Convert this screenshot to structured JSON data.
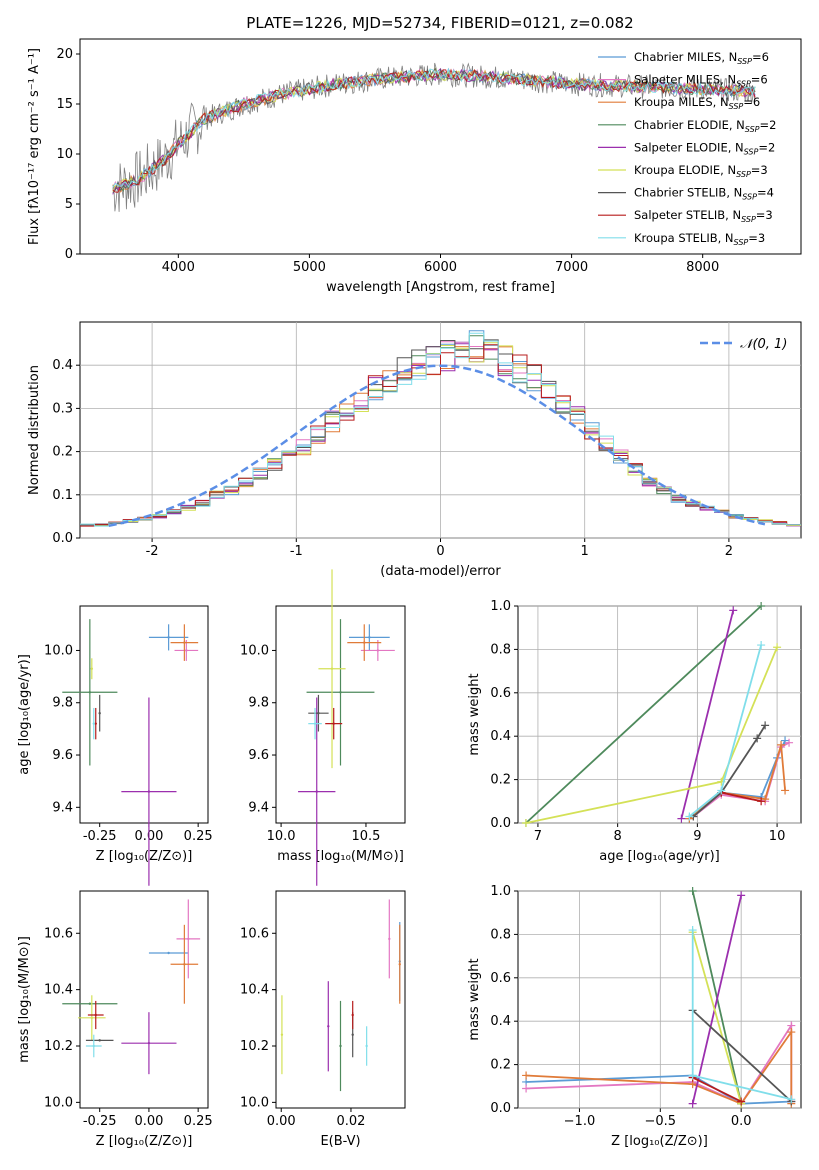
{
  "title": "PLATE=1226, MJD=52734, FIBERID=0121, z=0.082",
  "colors": {
    "Chabrier MILES": "#5b9bd5",
    "Salpeter MILES": "#e377c2",
    "Kroupa MILES": "#e07b39",
    "Chabrier ELODIE": "#4e8a5c",
    "Salpeter ELODIE": "#9b2fae",
    "Kroupa ELODIE": "#d4e157",
    "Chabrier STELIB": "#555555",
    "Salpeter STELIB": "#b71c1c",
    "Kroupa STELIB": "#80deea",
    "data": "#808080",
    "normal": "#5b8ee6"
  },
  "chart_data": [
    {
      "type": "line",
      "title": "PLATE=1226, MJD=52734, FIBERID=0121, z=0.082",
      "xlabel": "wavelength [Angstrom, rest frame]",
      "ylabel": "Flux [fλ10⁻¹⁷ erg cm⁻² s⁻¹ A⁻¹]",
      "xlim": [
        3250,
        8750
      ],
      "ylim": [
        0,
        21.5
      ],
      "xticks": [
        4000,
        5000,
        6000,
        7000,
        8000
      ],
      "yticks": [
        0,
        5,
        10,
        15,
        20
      ],
      "grid": false,
      "legend": "top-right",
      "continuum_points": [
        [
          3500,
          6.5
        ],
        [
          3700,
          7.5
        ],
        [
          3900,
          9.5
        ],
        [
          4000,
          11.0
        ],
        [
          4200,
          13.5
        ],
        [
          4500,
          15.0
        ],
        [
          4800,
          16.0
        ],
        [
          5200,
          17.0
        ],
        [
          5600,
          17.6
        ],
        [
          6000,
          18.0
        ],
        [
          6500,
          17.6
        ],
        [
          7000,
          17.0
        ],
        [
          7400,
          16.8
        ],
        [
          8000,
          16.5
        ],
        [
          8400,
          16.2
        ]
      ],
      "series": [
        {
          "name": "Chabrier MILES, N_SSP=6",
          "legend": "Chabrier MILES, N",
          "sub": "SSP",
          "eq": "=6"
        },
        {
          "name": "Salpeter MILES, N_SSP=6",
          "legend": "Salpeter MILES, N",
          "sub": "SSP",
          "eq": "=6"
        },
        {
          "name": "Kroupa MILES, N_SSP=6",
          "legend": "Kroupa MILES, N",
          "sub": "SSP",
          "eq": "=6"
        },
        {
          "name": "Chabrier ELODIE, N_SSP=2",
          "legend": "Chabrier ELODIE, N",
          "sub": "SSP",
          "eq": "=2"
        },
        {
          "name": "Salpeter ELODIE, N_SSP=2",
          "legend": "Salpeter ELODIE, N",
          "sub": "SSP",
          "eq": "=2"
        },
        {
          "name": "Kroupa ELODIE, N_SSP=3",
          "legend": "Kroupa ELODIE, N",
          "sub": "SSP",
          "eq": "=3"
        },
        {
          "name": "Chabrier STELIB, N_SSP=4",
          "legend": "Chabrier STELIB, N",
          "sub": "SSP",
          "eq": "=4"
        },
        {
          "name": "Salpeter STELIB, N_SSP=3",
          "legend": "Salpeter STELIB, N",
          "sub": "SSP",
          "eq": "=3"
        },
        {
          "name": "Kroupa STELIB, N_SSP=3",
          "legend": "Kroupa STELIB, N",
          "sub": "SSP",
          "eq": "=3"
        }
      ]
    },
    {
      "type": "bar",
      "xlabel": "(data-model)/error",
      "ylabel": "Normed distribution",
      "xlim": [
        -2.5,
        2.5
      ],
      "ylim": [
        0,
        0.5
      ],
      "xticks": [
        -2,
        -1,
        0,
        1,
        2
      ],
      "yticks": [
        0.0,
        0.1,
        0.2,
        0.3,
        0.4
      ],
      "grid": true,
      "legend": "top-right",
      "legend_label": "𝒩(0, 1)",
      "bin_width": 0.1,
      "histogram_centers_start": -2.45,
      "histogram_values": [
        0.03,
        0.03,
        0.035,
        0.04,
        0.045,
        0.05,
        0.06,
        0.07,
        0.08,
        0.1,
        0.11,
        0.13,
        0.15,
        0.17,
        0.19,
        0.21,
        0.24,
        0.27,
        0.29,
        0.32,
        0.35,
        0.37,
        0.39,
        0.4,
        0.41,
        0.42,
        0.43,
        0.44,
        0.43,
        0.41,
        0.39,
        0.37,
        0.34,
        0.31,
        0.28,
        0.25,
        0.22,
        0.19,
        0.16,
        0.13,
        0.11,
        0.09,
        0.08,
        0.07,
        0.06,
        0.05,
        0.045,
        0.04,
        0.035,
        0.03
      ]
    },
    {
      "type": "scatter",
      "xlabel": "Z [log₁₀(Z/Z⊙)]",
      "ylabel": "age  [log₁₀(age/yr)]",
      "xlim": [
        -0.35,
        0.3
      ],
      "ylim": [
        9.34,
        10.17
      ],
      "xticks": [
        -0.25,
        0.0,
        0.25
      ],
      "yticks": [
        9.4,
        9.6,
        9.8,
        10.0
      ],
      "grid": false,
      "points": [
        {
          "series": "Chabrier MILES",
          "x": 0.1,
          "y": 10.05,
          "xerr": 0.1,
          "yerr": 0.05
        },
        {
          "series": "Salpeter MILES",
          "x": 0.19,
          "y": 10.0,
          "xerr": 0.06,
          "yerr": 0.04
        },
        {
          "series": "Kroupa MILES",
          "x": 0.18,
          "y": 10.03,
          "xerr": 0.07,
          "yerr": 0.07
        },
        {
          "series": "Chabrier ELODIE",
          "x": -0.3,
          "y": 9.84,
          "xerr": 0.14,
          "yerr": 0.28
        },
        {
          "series": "Salpeter ELODIE",
          "x": 0.0,
          "y": 9.46,
          "xerr": 0.14,
          "yerr": 0.36
        },
        {
          "series": "Kroupa ELODIE",
          "x": -0.29,
          "y": 9.93,
          "xerr": 0.0,
          "yerr": 0.04
        },
        {
          "series": "Chabrier STELIB",
          "x": -0.25,
          "y": 9.76,
          "xerr": 0.0,
          "yerr": 0.07
        },
        {
          "series": "Salpeter STELIB",
          "x": -0.27,
          "y": 9.72,
          "xerr": 0.0,
          "yerr": 0.06
        },
        {
          "series": "Kroupa STELIB",
          "x": -0.28,
          "y": 9.72,
          "xerr": 0.0,
          "yerr": 0.06
        }
      ]
    },
    {
      "type": "scatter",
      "xlabel": "mass [log₁₀(M/M⊙)]",
      "xlim": [
        9.97,
        10.73
      ],
      "ylim": [
        9.34,
        10.17
      ],
      "xticks": [
        10.0,
        10.5
      ],
      "yticks": [
        9.4,
        9.6,
        9.8,
        10.0
      ],
      "grid": false,
      "points": [
        {
          "series": "Chabrier MILES",
          "x": 10.52,
          "y": 10.05,
          "xerr": 0.12,
          "yerr": 0.05
        },
        {
          "series": "Salpeter MILES",
          "x": 10.57,
          "y": 10.0,
          "xerr": 0.1,
          "yerr": 0.04
        },
        {
          "series": "Kroupa MILES",
          "x": 10.49,
          "y": 10.03,
          "xerr": 0.1,
          "yerr": 0.07
        },
        {
          "series": "Chabrier ELODIE",
          "x": 10.35,
          "y": 9.84,
          "xerr": 0.2,
          "yerr": 0.28
        },
        {
          "series": "Salpeter ELODIE",
          "x": 10.21,
          "y": 9.46,
          "xerr": 0.11,
          "yerr": 0.36
        },
        {
          "series": "Kroupa ELODIE",
          "x": 10.3,
          "y": 9.93,
          "xerr": 0.08,
          "yerr": 0.38
        },
        {
          "series": "Chabrier STELIB",
          "x": 10.22,
          "y": 9.76,
          "xerr": 0.06,
          "yerr": 0.07
        },
        {
          "series": "Salpeter STELIB",
          "x": 10.31,
          "y": 9.72,
          "xerr": 0.05,
          "yerr": 0.06
        },
        {
          "series": "Kroupa STELIB",
          "x": 10.2,
          "y": 9.72,
          "xerr": 0.04,
          "yerr": 0.06
        }
      ]
    },
    {
      "type": "line",
      "xlabel": "age  [log₁₀(age/yr)]",
      "ylabel": "mass weight",
      "xlim": [
        6.75,
        10.3
      ],
      "ylim": [
        0,
        1.0
      ],
      "xticks": [
        7,
        8,
        9,
        10
      ],
      "yticks": [
        0.0,
        0.2,
        0.4,
        0.6,
        0.8,
        1.0
      ],
      "grid": true,
      "series": [
        {
          "name": "Chabrier MILES",
          "points": [
            [
              8.9,
              0.02
            ],
            [
              9.3,
              0.14
            ],
            [
              9.8,
              0.12
            ],
            [
              10.0,
              0.3
            ],
            [
              10.1,
              0.38
            ]
          ]
        },
        {
          "name": "Salpeter MILES",
          "points": [
            [
              8.95,
              0.03
            ],
            [
              9.3,
              0.13
            ],
            [
              9.85,
              0.1
            ],
            [
              10.05,
              0.35
            ],
            [
              10.15,
              0.37
            ]
          ]
        },
        {
          "name": "Kroupa MILES",
          "points": [
            [
              8.9,
              0.02
            ],
            [
              9.3,
              0.14
            ],
            [
              9.85,
              0.11
            ],
            [
              10.05,
              0.36
            ],
            [
              10.1,
              0.15
            ]
          ]
        },
        {
          "name": "Chabrier ELODIE",
          "points": [
            [
              6.85,
              0.0
            ],
            [
              9.8,
              1.0
            ]
          ]
        },
        {
          "name": "Salpeter ELODIE",
          "points": [
            [
              8.8,
              0.02
            ],
            [
              9.45,
              0.98
            ]
          ]
        },
        {
          "name": "Kroupa ELODIE",
          "points": [
            [
              6.85,
              0.0
            ],
            [
              9.3,
              0.19
            ],
            [
              10.0,
              0.81
            ]
          ]
        },
        {
          "name": "Chabrier STELIB",
          "points": [
            [
              8.95,
              0.03
            ],
            [
              9.3,
              0.14
            ],
            [
              9.75,
              0.39
            ],
            [
              9.85,
              0.45
            ]
          ]
        },
        {
          "name": "Salpeter STELIB",
          "points": [
            [
              9.3,
              0.14
            ],
            [
              9.8,
              0.1
            ]
          ]
        },
        {
          "name": "Kroupa STELIB",
          "points": [
            [
              8.9,
              0.03
            ],
            [
              9.3,
              0.15
            ],
            [
              9.8,
              0.82
            ]
          ]
        }
      ]
    },
    {
      "type": "scatter",
      "xlabel": "Z [log₁₀(Z/Z⊙)]",
      "ylabel": "mass [log₁₀(M/M⊙)]",
      "xlim": [
        -0.35,
        0.3
      ],
      "ylim": [
        9.98,
        10.75
      ],
      "xticks": [
        -0.25,
        0.0,
        0.25
      ],
      "yticks": [
        10.0,
        10.2,
        10.4,
        10.6
      ],
      "grid": false,
      "points": [
        {
          "series": "Chabrier MILES",
          "x": 0.1,
          "y": 10.53,
          "xerr": 0.1,
          "yerr": 0.0
        },
        {
          "series": "Salpeter MILES",
          "x": 0.2,
          "y": 10.58,
          "xerr": 0.06,
          "yerr": 0.14
        },
        {
          "series": "Kroupa MILES",
          "x": 0.18,
          "y": 10.49,
          "xerr": 0.07,
          "yerr": 0.14
        },
        {
          "series": "Chabrier ELODIE",
          "x": -0.3,
          "y": 10.35,
          "xerr": 0.14,
          "yerr": 0.0
        },
        {
          "series": "Salpeter ELODIE",
          "x": 0.0,
          "y": 10.21,
          "xerr": 0.14,
          "yerr": 0.11
        },
        {
          "series": "Kroupa ELODIE",
          "x": -0.29,
          "y": 10.3,
          "xerr": 0.07,
          "yerr": 0.08
        },
        {
          "series": "Chabrier STELIB",
          "x": -0.25,
          "y": 10.22,
          "xerr": 0.07,
          "yerr": 0.0
        },
        {
          "series": "Salpeter STELIB",
          "x": -0.27,
          "y": 10.31,
          "xerr": 0.04,
          "yerr": 0.05
        },
        {
          "series": "Kroupa STELIB",
          "x": -0.28,
          "y": 10.2,
          "xerr": 0.04,
          "yerr": 0.04
        }
      ]
    },
    {
      "type": "scatter",
      "xlabel": "E(B-V)",
      "xlim": [
        -0.0015,
        0.0355
      ],
      "ylim": [
        9.98,
        10.75
      ],
      "xticks": [
        0.0,
        0.02
      ],
      "yticks": [
        10.0,
        10.2,
        10.4,
        10.6
      ],
      "grid": false,
      "points": [
        {
          "series": "Chabrier MILES",
          "x": 0.034,
          "y": 10.5,
          "yerr": 0.14
        },
        {
          "series": "Salpeter MILES",
          "x": 0.031,
          "y": 10.58,
          "yerr": 0.14
        },
        {
          "series": "Kroupa MILES",
          "x": 0.034,
          "y": 10.49,
          "yerr": 0.14
        },
        {
          "series": "Chabrier ELODIE",
          "x": 0.017,
          "y": 10.2,
          "yerr": 0.16
        },
        {
          "series": "Salpeter ELODIE",
          "x": 0.0135,
          "y": 10.27,
          "yerr": 0.16
        },
        {
          "series": "Kroupa ELODIE",
          "x": 0.0002,
          "y": 10.24,
          "yerr": 0.14
        },
        {
          "series": "Chabrier STELIB",
          "x": 0.0205,
          "y": 10.24,
          "yerr": 0.08
        },
        {
          "series": "Salpeter STELIB",
          "x": 0.0205,
          "y": 10.31,
          "yerr": 0.05
        },
        {
          "series": "Kroupa STELIB",
          "x": 0.0245,
          "y": 10.2,
          "yerr": 0.07
        }
      ]
    },
    {
      "type": "line",
      "xlabel": "Z [log₁₀(Z/Z⊙)]",
      "ylabel": "mass weight",
      "xlim": [
        -1.38,
        0.37
      ],
      "ylim": [
        0,
        1.0
      ],
      "xticks": [
        -1.0,
        -0.5,
        0.0
      ],
      "yticks": [
        0.0,
        0.2,
        0.4,
        0.6,
        0.8,
        1.0
      ],
      "grid": true,
      "series": [
        {
          "name": "Chabrier MILES",
          "points": [
            [
              -1.33,
              0.12
            ],
            [
              -0.3,
              0.15
            ],
            [
              0.0,
              0.02
            ],
            [
              0.31,
              0.03
            ]
          ]
        },
        {
          "name": "Salpeter MILES",
          "points": [
            [
              -1.33,
              0.09
            ],
            [
              -0.3,
              0.12
            ],
            [
              0.0,
              0.02
            ],
            [
              0.31,
              0.38
            ],
            [
              0.31,
              0.03
            ]
          ]
        },
        {
          "name": "Kroupa MILES",
          "points": [
            [
              -1.33,
              0.15
            ],
            [
              -0.3,
              0.11
            ],
            [
              0.0,
              0.02
            ],
            [
              0.31,
              0.35
            ],
            [
              0.31,
              0.02
            ]
          ]
        },
        {
          "name": "Chabrier ELODIE",
          "points": [
            [
              -0.3,
              1.0
            ],
            [
              0.0,
              0.02
            ]
          ]
        },
        {
          "name": "Salpeter ELODIE",
          "points": [
            [
              -0.3,
              0.02
            ],
            [
              0.0,
              0.98
            ]
          ]
        },
        {
          "name": "Kroupa ELODIE",
          "points": [
            [
              -0.3,
              0.81
            ],
            [
              0.0,
              0.02
            ]
          ]
        },
        {
          "name": "Chabrier STELIB",
          "points": [
            [
              -0.3,
              0.45
            ],
            [
              0.31,
              0.03
            ]
          ]
        },
        {
          "name": "Salpeter STELIB",
          "points": [
            [
              -0.3,
              0.14
            ],
            [
              0.0,
              0.03
            ]
          ]
        },
        {
          "name": "Kroupa STELIB",
          "points": [
            [
              -0.3,
              0.82
            ],
            [
              -0.3,
              0.15
            ],
            [
              0.31,
              0.04
            ]
          ]
        }
      ]
    }
  ]
}
